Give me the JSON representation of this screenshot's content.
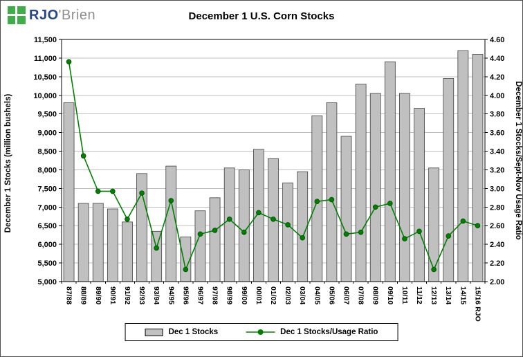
{
  "logo": {
    "icon": "green-window-pane",
    "primary": "RJO",
    "secondary": "'Brien"
  },
  "title": "December 1 U.S. Corn Stocks",
  "chart_data": {
    "type": "bar+line",
    "title": "December 1 U.S. Corn Stocks",
    "categories": [
      "87/88",
      "88/89",
      "89/90",
      "90/91",
      "91/92",
      "92/93",
      "93/94",
      "94/95",
      "95/96",
      "96/97",
      "97/98",
      "98/99",
      "99/00",
      "00/01",
      "01/02",
      "02/03",
      "03/04",
      "04/05",
      "05/06",
      "06/07",
      "07/08",
      "08/09",
      "09/10",
      "10/11",
      "11/12",
      "12/13",
      "13/14",
      "14/15",
      "15/16 RJO"
    ],
    "series": [
      {
        "name": "Dec 1 Stocks",
        "type": "bar",
        "axis": "left",
        "color": "#c0c0c0",
        "values": [
          9800,
          7100,
          7100,
          6950,
          6600,
          7900,
          6350,
          8100,
          6200,
          6900,
          7250,
          8050,
          8000,
          8550,
          8300,
          7650,
          7950,
          9450,
          9800,
          8900,
          10300,
          10050,
          10900,
          10050,
          9650,
          8050,
          10450,
          11200,
          11100
        ]
      },
      {
        "name": "Dec 1 Stocks/Usage Ratio",
        "type": "line",
        "axis": "right",
        "color": "#008000",
        "marker": "circle",
        "values": [
          4.36,
          3.35,
          2.97,
          2.97,
          2.67,
          2.95,
          2.36,
          2.87,
          2.13,
          2.51,
          2.55,
          2.67,
          2.53,
          2.74,
          2.67,
          2.61,
          2.47,
          2.86,
          2.88,
          2.51,
          2.53,
          2.8,
          2.84,
          2.46,
          2.54,
          2.13,
          2.49,
          2.65,
          2.6
        ]
      }
    ],
    "left_axis": {
      "label": "December 1 Stocks (million bushels)",
      "min": 5000,
      "max": 11500,
      "step": 500
    },
    "right_axis": {
      "label": "December 1 Stocks/Sept-Nov Usage Ratio",
      "min": 2.0,
      "max": 4.6,
      "step": 0.2
    },
    "grid": true,
    "legend_position": "bottom-center"
  }
}
